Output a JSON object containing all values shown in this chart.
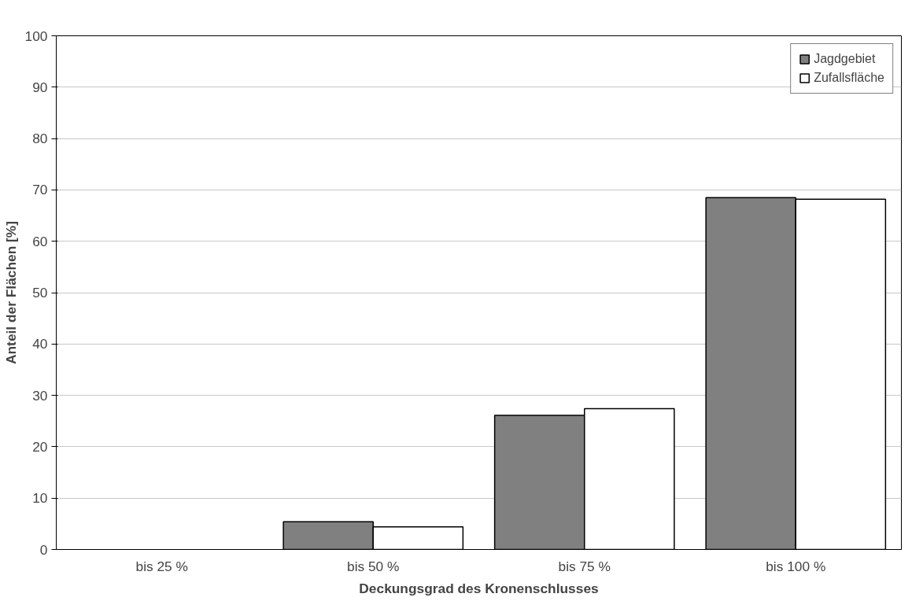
{
  "chart_data": {
    "type": "bar",
    "xlabel": "Deckungsgrad des Kronenschlusses",
    "ylabel": "Anteil der Flächen [%]",
    "categories": [
      "bis 25 %",
      "bis 50 %",
      "bis 75 %",
      "bis 100 %"
    ],
    "series": [
      {
        "name": "Jagdgebiet",
        "color": "#808080",
        "values": [
          0,
          5.4,
          26.1,
          68.5
        ]
      },
      {
        "name": "Zufallsfläche",
        "color": "#ffffff",
        "values": [
          0,
          4.4,
          27.4,
          68.2
        ]
      }
    ],
    "ylim": [
      0,
      100
    ],
    "yticks": [
      0,
      10,
      20,
      30,
      40,
      50,
      60,
      70,
      80,
      90,
      100
    ],
    "grid": "y",
    "legend": "top right"
  }
}
